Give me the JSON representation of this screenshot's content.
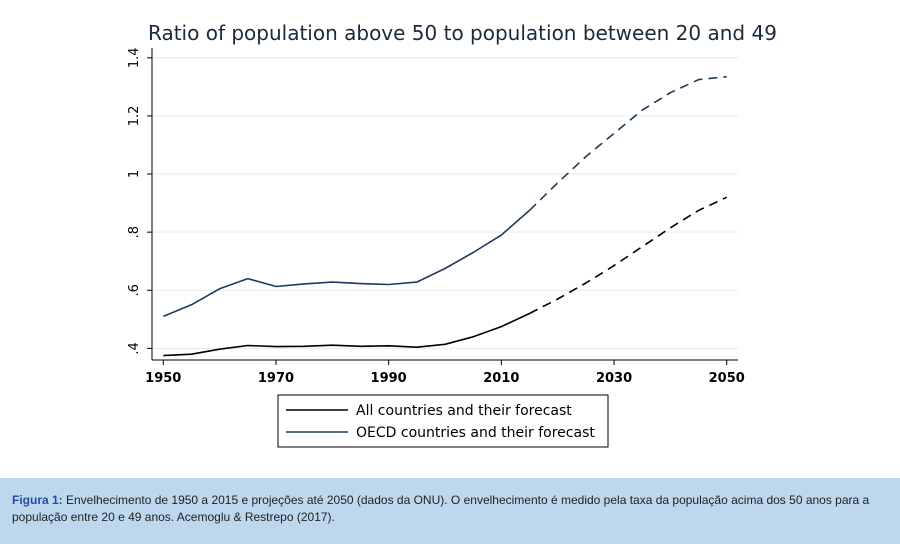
{
  "chart_data": {
    "type": "line",
    "title": "Ratio of population above 50 to population between 20 and 49",
    "xlabel": "",
    "ylabel": "",
    "xlim": [
      1948,
      2052
    ],
    "ylim": [
      0.36,
      1.42
    ],
    "xticks": [
      1950,
      1970,
      1990,
      2010,
      2030,
      2050
    ],
    "xtick_labels": [
      "1950",
      "1970",
      "1990",
      "2010",
      "2030",
      "2050"
    ],
    "yticks": [
      0.4,
      0.6,
      0.8,
      1.0,
      1.2,
      1.4
    ],
    "ytick_labels": [
      ".4",
      ".6",
      ".8",
      "1",
      "1.2",
      "1.4"
    ],
    "forecast_start": 2015,
    "grid": "horizontal",
    "legend_position": "bottom",
    "series": [
      {
        "name": "All countries and their forecast",
        "color": "#000000",
        "x": [
          1950,
          1955,
          1960,
          1965,
          1970,
          1975,
          1980,
          1985,
          1990,
          1995,
          2000,
          2005,
          2010,
          2015,
          2020,
          2025,
          2030,
          2035,
          2040,
          2045,
          2050
        ],
        "values": [
          0.375,
          0.38,
          0.397,
          0.41,
          0.406,
          0.407,
          0.411,
          0.407,
          0.409,
          0.404,
          0.414,
          0.44,
          0.475,
          0.52,
          0.57,
          0.625,
          0.685,
          0.75,
          0.815,
          0.875,
          0.92
        ]
      },
      {
        "name": "OECD countries and their forecast",
        "color": "#1f3a5a",
        "x": [
          1950,
          1955,
          1960,
          1965,
          1970,
          1975,
          1980,
          1985,
          1990,
          1995,
          2000,
          2005,
          2010,
          2015,
          2020,
          2025,
          2030,
          2035,
          2040,
          2045,
          2050
        ],
        "values": [
          0.51,
          0.55,
          0.605,
          0.64,
          0.613,
          0.622,
          0.628,
          0.623,
          0.62,
          0.628,
          0.675,
          0.73,
          0.79,
          0.875,
          0.97,
          1.06,
          1.14,
          1.22,
          1.28,
          1.325,
          1.335
        ]
      }
    ]
  },
  "caption": {
    "label": "Figura 1:",
    "text": " Envelhecimento de 1950 a 2015 e projeções até 2050 (dados da ONU). O envelhecimento é medido pela taxa da população acima dos 50 anos para a população entre 20 e 49 anos.  Acemoglu & Restrepo (2017)."
  }
}
